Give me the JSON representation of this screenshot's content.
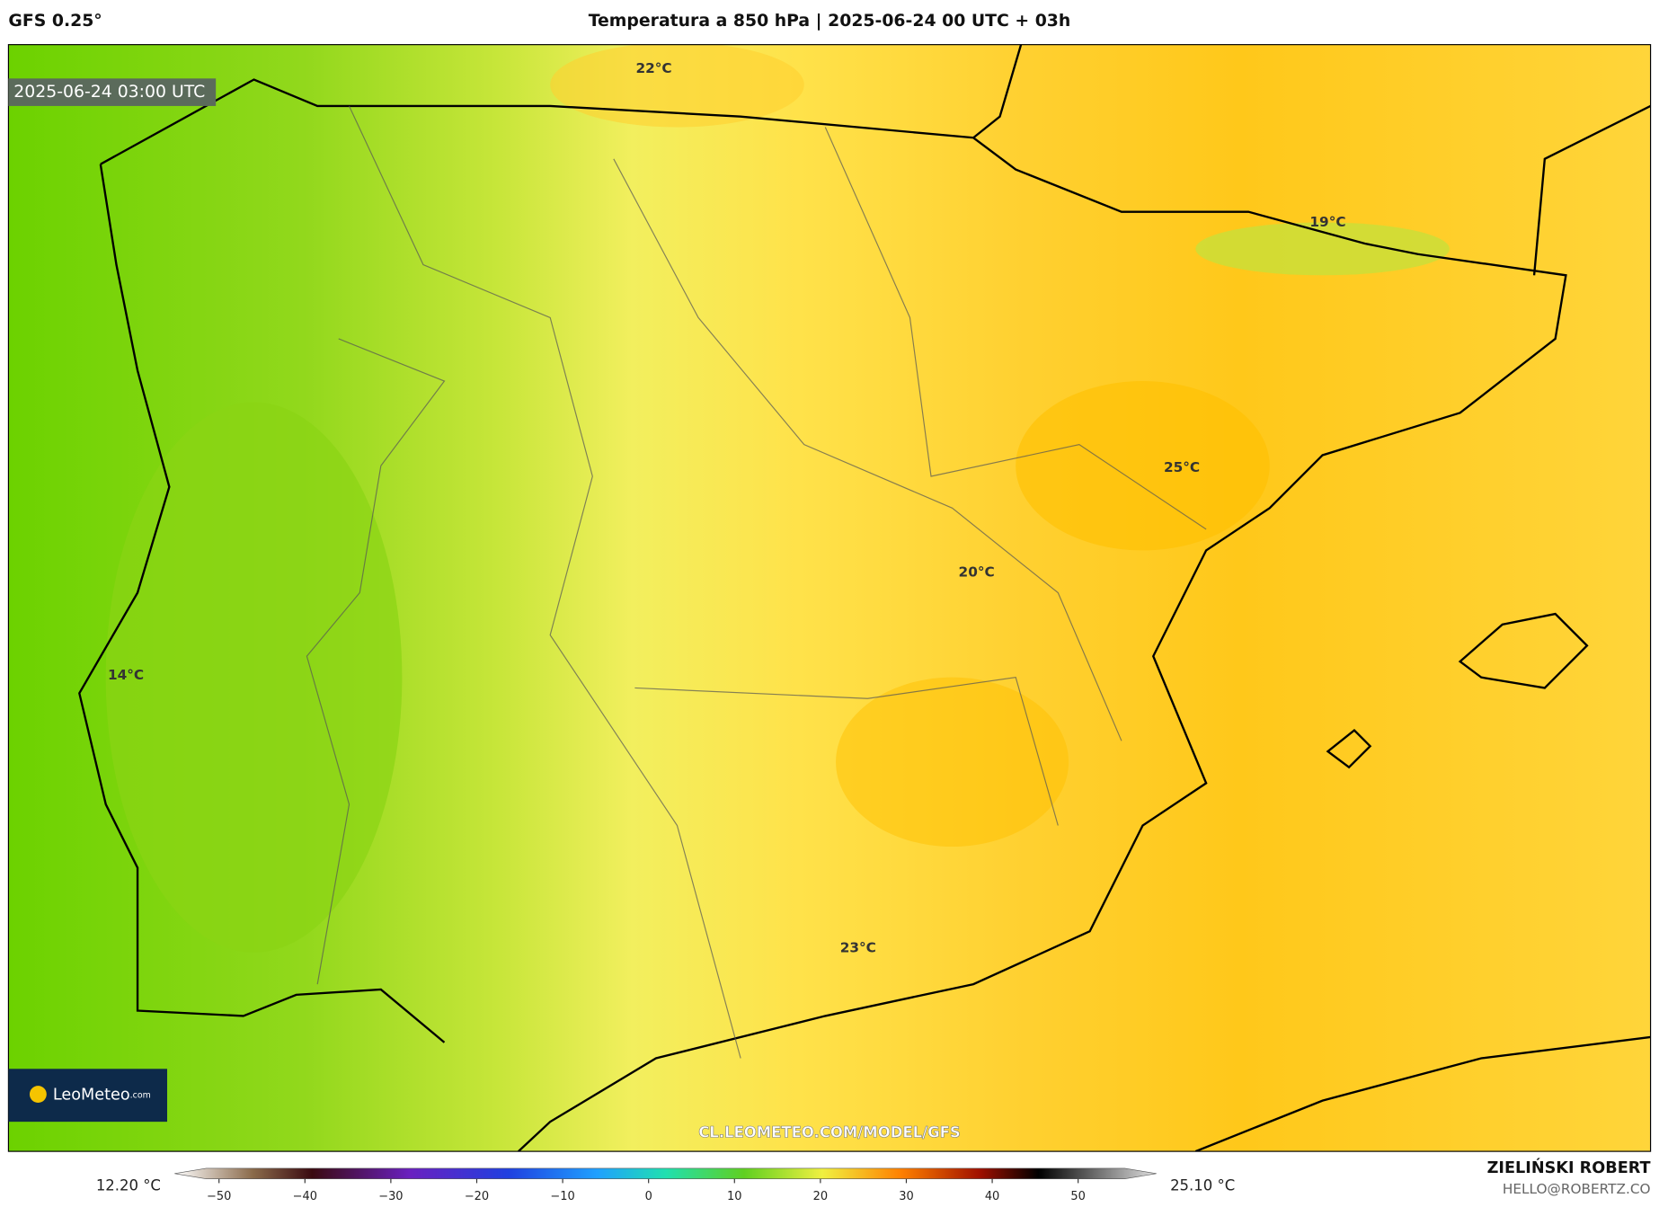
{
  "header": {
    "model": "GFS 0.25°",
    "title": "Temperatura a 850 hPa | 2025-06-24 00 UTC + 03h"
  },
  "map": {
    "timestamp": "2025-06-24 03:00 UTC",
    "labels": [
      "22°C",
      "19°C",
      "25°C",
      "20°C",
      "14°C",
      "23°C"
    ],
    "watermark": "CL.LEOMETEO.COM/MODEL/GFS",
    "logo": {
      "brand": "LeoMeteo",
      "suffix": ".com"
    }
  },
  "colorbar": {
    "min_label": "12.20 °C",
    "max_label": "25.10 °C",
    "ticks": [
      "−50",
      "−40",
      "−30",
      "−20",
      "−10",
      "0",
      "10",
      "20",
      "30",
      "40",
      "50"
    ]
  },
  "footer": {
    "author": "ZIELIŃSKI ROBERT",
    "email": "HELLO@ROBERTZ.CO"
  }
}
